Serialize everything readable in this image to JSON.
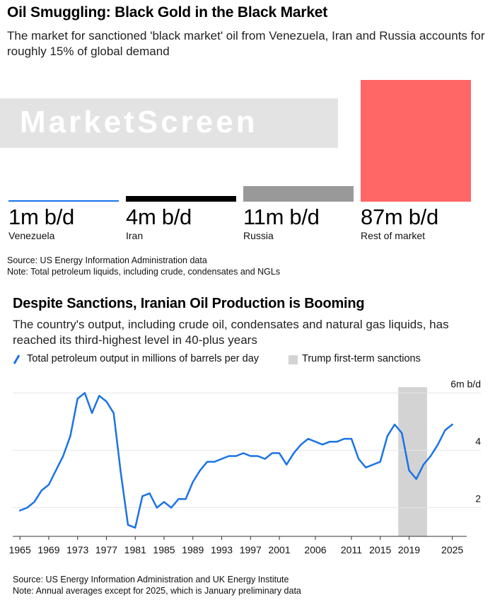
{
  "title": "Oil Smuggling: Black Gold in the Black Market",
  "subtitle": "The market for sanctioned 'black market' oil from Venezuela, Iran and Russia accounts for roughly 15% of global demand",
  "watermark": "MarketScreen",
  "chart_data": [
    {
      "type": "bar",
      "categories": [
        "Venezuela",
        "Iran",
        "Russia",
        "Rest of market"
      ],
      "values": [
        1,
        4,
        11,
        87
      ],
      "value_labels": [
        "1m b/d",
        "4m b/d",
        "11m b/d",
        "87m b/d"
      ],
      "unit": "m b/d",
      "colors": [
        "#1a73e8",
        "#000000",
        "#999999",
        "#ff6666"
      ],
      "title": "Oil Smuggling: Black Gold in the Black Market"
    },
    {
      "type": "line",
      "title": "Despite Sanctions, Iranian Oil Production is Booming",
      "subtitle": "The country's output, including crude oil, condensates and natural gas liquids, has reached its third-highest level in 40-plus years",
      "series": [
        {
          "name": "Total petroleum output in millions of barrels per day",
          "color": "#1a73e8",
          "x": [
            1965,
            1966,
            1967,
            1968,
            1969,
            1970,
            1971,
            1972,
            1973,
            1974,
            1975,
            1976,
            1977,
            1978,
            1979,
            1980,
            1981,
            1982,
            1983,
            1984,
            1985,
            1986,
            1987,
            1988,
            1989,
            1990,
            1991,
            1992,
            1993,
            1994,
            1995,
            1996,
            1997,
            1998,
            1999,
            2000,
            2001,
            2002,
            2003,
            2004,
            2005,
            2006,
            2007,
            2008,
            2009,
            2010,
            2011,
            2012,
            2013,
            2014,
            2015,
            2016,
            2017,
            2018,
            2019,
            2020,
            2021,
            2022,
            2023,
            2024,
            2025
          ],
          "values": [
            1.9,
            2.0,
            2.2,
            2.6,
            2.8,
            3.3,
            3.8,
            4.5,
            5.8,
            6.0,
            5.3,
            5.9,
            5.7,
            5.3,
            3.2,
            1.4,
            1.3,
            2.4,
            2.5,
            2.0,
            2.2,
            2.0,
            2.3,
            2.3,
            2.9,
            3.3,
            3.6,
            3.6,
            3.7,
            3.8,
            3.8,
            3.9,
            3.8,
            3.8,
            3.7,
            3.9,
            3.9,
            3.5,
            3.9,
            4.2,
            4.4,
            4.3,
            4.2,
            4.3,
            4.3,
            4.4,
            4.4,
            3.7,
            3.4,
            3.5,
            3.6,
            4.5,
            4.9,
            4.6,
            3.3,
            3.0,
            3.5,
            3.8,
            4.2,
            4.7,
            4.9
          ]
        }
      ],
      "shaded_region": {
        "label": "Trump first-term sanctions",
        "x_start": 2018,
        "x_end": 2021,
        "color": "#d3d3d3"
      },
      "x_ticks": [
        1965,
        1969,
        1973,
        1977,
        1981,
        1985,
        1989,
        1993,
        1997,
        2001,
        2006,
        2011,
        2015,
        2019,
        2025
      ],
      "x_tick_labels": [
        "1965",
        "1969",
        "1973",
        "1977",
        "1981",
        "1985",
        "1989",
        "1993",
        "1997",
        "2001",
        "2006",
        "2011",
        "2015",
        "2019",
        "2025"
      ],
      "y_ticks": [
        2,
        4,
        6
      ],
      "y_tick_labels": [
        "2",
        "4",
        "6m b/d"
      ],
      "ylim": [
        1,
        6.5
      ],
      "xlim": [
        1964,
        2027
      ]
    }
  ],
  "bar_section": {
    "values": [
      "1m b/d",
      "4m b/d",
      "11m b/d",
      "87m b/d"
    ],
    "labels": [
      "Venezuela",
      "Iran",
      "Russia",
      "Rest of market"
    ],
    "source": "Source: US Energy Information Administration data",
    "note": "Note: Total petroleum liquids, including crude, condensates and NGLs"
  },
  "line_section": {
    "title": "Despite Sanctions, Iranian Oil Production is Booming",
    "subtitle": "The country's output, including crude oil, condensates and natural gas liquids, has reached its third-highest level in 40-plus years",
    "legend_line": "Total petroleum output in millions of barrels per day",
    "legend_box": "Trump first-term sanctions",
    "source": "Source: US Energy Information Administration and UK Energy Institute",
    "note": "Note: Annual averages except for 2025, which is January preliminary data"
  }
}
